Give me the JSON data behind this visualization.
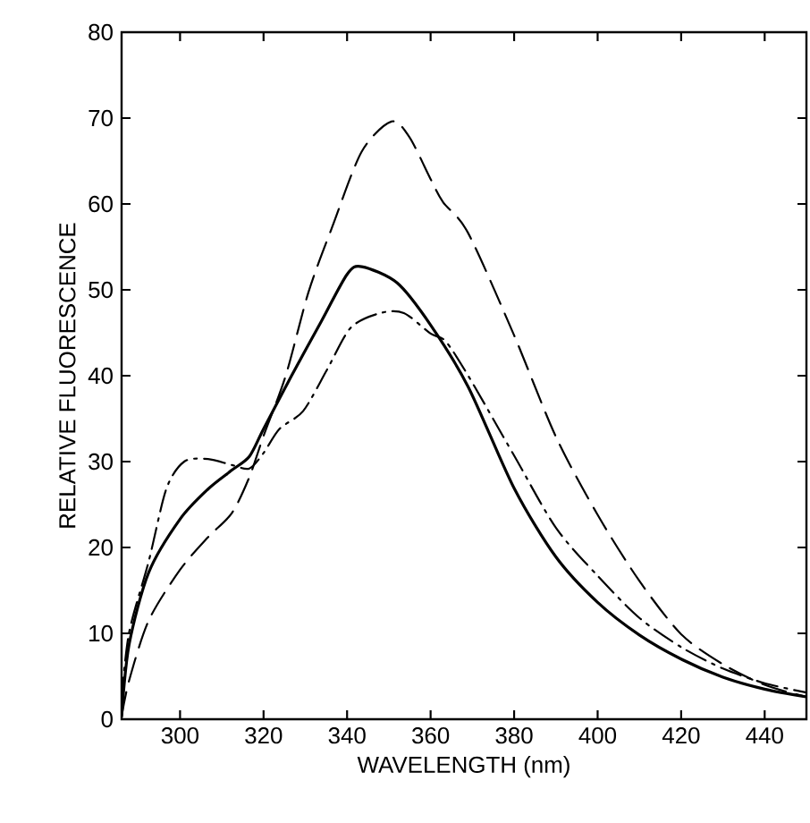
{
  "chart_data": {
    "type": "line",
    "xlabel": "WAVELENGTH (nm)",
    "ylabel": "RELATIVE  FLUORESCENCE",
    "xlim": [
      286,
      450
    ],
    "ylim": [
      0,
      80
    ],
    "xticks": [
      300,
      320,
      340,
      360,
      380,
      400,
      420,
      440
    ],
    "yticks": [
      0,
      10,
      20,
      30,
      40,
      50,
      60,
      70,
      80
    ],
    "grid": false,
    "series": [
      {
        "color": "#000000",
        "line_style": "solid",
        "x": [
          286,
          287.8,
          292.5,
          300,
          306.7,
          312.4,
          316.6,
          320,
          326.7,
          333.8,
          340,
          343.5,
          352,
          360,
          369,
          380,
          390,
          400,
          410,
          420,
          430,
          440,
          450
        ],
        "values": [
          0.3,
          8.7,
          17.1,
          23.3,
          26.8,
          29,
          30.6,
          33.8,
          40,
          46.3,
          51.8,
          52.7,
          50.8,
          45.9,
          38.7,
          26.9,
          18.9,
          13.6,
          9.8,
          7,
          4.9,
          3.5,
          2.6
        ]
      },
      {
        "color": "#000000",
        "line_style": "dashed",
        "x": [
          286,
          287.8,
          292.5,
          300,
          306.7,
          312.4,
          316.6,
          320,
          325.3,
          330.8,
          336.5,
          343.5,
          350.6,
          354.9,
          360,
          363,
          369,
          380,
          390,
          400,
          410,
          420,
          430,
          440,
          450
        ],
        "values": [
          0.3,
          4.5,
          11.5,
          17.4,
          21.2,
          24,
          28.2,
          33,
          40,
          49.8,
          57.4,
          66.1,
          69.6,
          67.8,
          62.9,
          60.2,
          56.6,
          44.7,
          32.9,
          23.8,
          16.1,
          9.9,
          6.4,
          4,
          2.6
        ]
      },
      {
        "color": "#000000",
        "line_style": "dashdot",
        "x": [
          286,
          287.8,
          292.5,
          296.7,
          301,
          306.7,
          312.4,
          316.6,
          320,
          323.8,
          329.5,
          335.2,
          340.9,
          348,
          353.6,
          360,
          363.6,
          369,
          380,
          390,
          400,
          410,
          420,
          430,
          440,
          450
        ],
        "values": [
          2.4,
          10.1,
          18.4,
          26.8,
          30,
          30.3,
          29.6,
          29.2,
          31,
          33.8,
          35.9,
          40.7,
          45.6,
          47.3,
          47.3,
          44.9,
          44,
          40,
          30.7,
          22.3,
          16.7,
          11.8,
          8.4,
          5.9,
          4.2,
          3.1
        ]
      }
    ]
  }
}
